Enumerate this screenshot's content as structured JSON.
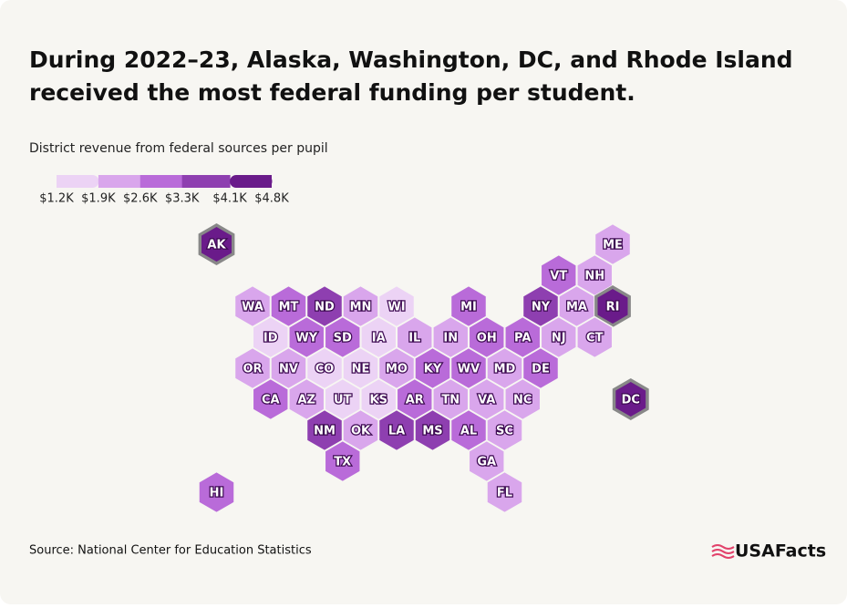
{
  "header": {
    "title": "During 2022–23, Alaska, Washington, DC, and Rhode Island received the most federal funding per student."
  },
  "legend": {
    "title": "District revenue from federal sources per pupil",
    "colors": [
      "#ecd3f5",
      "#d9a6ec",
      "#b96bd9",
      "#8e3fb0",
      "#6a1b8a"
    ],
    "ticks": [
      {
        "value": 1200,
        "label": "$1.2K"
      },
      {
        "value": 1900,
        "label": "$1.9K"
      },
      {
        "value": 2600,
        "label": "$2.6K"
      },
      {
        "value": 3300,
        "label": "$3.3K"
      },
      {
        "value": 4100,
        "label": "$4.1K"
      },
      {
        "value": 4800,
        "label": "$4.8K"
      }
    ]
  },
  "states": [
    {
      "label": "AK",
      "color": "#6a1b8a",
      "highlight": true
    },
    {
      "label": "ME",
      "color": "#d9a6ec"
    },
    {
      "label": "VT",
      "color": "#b96bd9"
    },
    {
      "label": "NH",
      "color": "#d9a6ec"
    },
    {
      "label": "WA",
      "color": "#d9a6ec"
    },
    {
      "label": "MT",
      "color": "#b96bd9"
    },
    {
      "label": "ND",
      "color": "#8e3fb0"
    },
    {
      "label": "MN",
      "color": "#d9a6ec"
    },
    {
      "label": "WI",
      "color": "#ecd3f5"
    },
    {
      "label": "MI",
      "color": "#b96bd9"
    },
    {
      "label": "NY",
      "color": "#8e3fb0"
    },
    {
      "label": "MA",
      "color": "#d9a6ec"
    },
    {
      "label": "RI",
      "color": "#6a1b8a",
      "highlight": true
    },
    {
      "label": "ID",
      "color": "#ecd3f5"
    },
    {
      "label": "WY",
      "color": "#b96bd9"
    },
    {
      "label": "SD",
      "color": "#b96bd9"
    },
    {
      "label": "IA",
      "color": "#ecd3f5"
    },
    {
      "label": "IL",
      "color": "#d9a6ec"
    },
    {
      "label": "IN",
      "color": "#d9a6ec"
    },
    {
      "label": "OH",
      "color": "#b96bd9"
    },
    {
      "label": "PA",
      "color": "#b96bd9"
    },
    {
      "label": "NJ",
      "color": "#d9a6ec"
    },
    {
      "label": "CT",
      "color": "#d9a6ec"
    },
    {
      "label": "OR",
      "color": "#d9a6ec"
    },
    {
      "label": "NV",
      "color": "#d9a6ec"
    },
    {
      "label": "CO",
      "color": "#ecd3f5"
    },
    {
      "label": "NE",
      "color": "#ecd3f5"
    },
    {
      "label": "MO",
      "color": "#d9a6ec"
    },
    {
      "label": "KY",
      "color": "#b96bd9"
    },
    {
      "label": "WV",
      "color": "#b96bd9"
    },
    {
      "label": "MD",
      "color": "#d9a6ec"
    },
    {
      "label": "DE",
      "color": "#b96bd9"
    },
    {
      "label": "CA",
      "color": "#b96bd9"
    },
    {
      "label": "AZ",
      "color": "#d9a6ec"
    },
    {
      "label": "UT",
      "color": "#ecd3f5"
    },
    {
      "label": "KS",
      "color": "#ecd3f5"
    },
    {
      "label": "AR",
      "color": "#b96bd9"
    },
    {
      "label": "TN",
      "color": "#d9a6ec"
    },
    {
      "label": "VA",
      "color": "#d9a6ec"
    },
    {
      "label": "NC",
      "color": "#d9a6ec"
    },
    {
      "label": "DC",
      "color": "#6a1b8a",
      "highlight": true
    },
    {
      "label": "NM",
      "color": "#8e3fb0"
    },
    {
      "label": "OK",
      "color": "#d9a6ec"
    },
    {
      "label": "LA",
      "color": "#8e3fb0"
    },
    {
      "label": "MS",
      "color": "#8e3fb0"
    },
    {
      "label": "AL",
      "color": "#b96bd9"
    },
    {
      "label": "SC",
      "color": "#d9a6ec"
    },
    {
      "label": "TX",
      "color": "#b96bd9"
    },
    {
      "label": "GA",
      "color": "#d9a6ec"
    },
    {
      "label": "HI",
      "color": "#b96bd9"
    },
    {
      "label": "FL",
      "color": "#d9a6ec"
    }
  ],
  "footer": {
    "source": "Source: National Center for Education Statistics",
    "brand": "USAFacts"
  }
}
